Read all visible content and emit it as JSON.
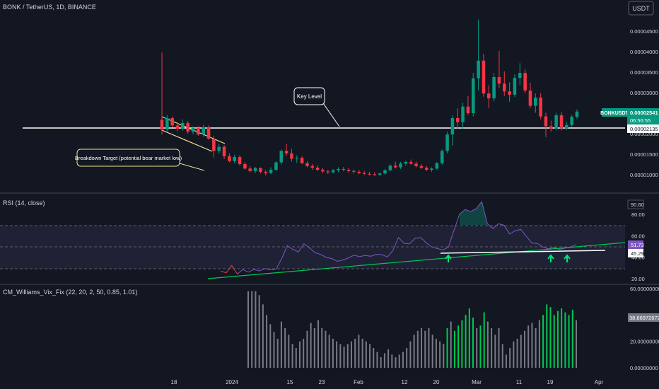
{
  "header": {
    "symbol": "BONK / TetherUS, 1D, BINANCE",
    "currency_button": "USDT"
  },
  "colors": {
    "background": "#131722",
    "up": "#089981",
    "down": "#f23645",
    "rsi_line": "#7e57c2",
    "rsi_band": "#2a2a46",
    "vix_bar": "#787b86",
    "vix_highlight": "#00c853",
    "trendline": "#00c853",
    "key_level": "#ffffff",
    "wedge": "#f0e68c",
    "arrow": "#00e676"
  },
  "annotations": {
    "key_level": "Key Level",
    "breakdown": "Breakdown Target (potential bear market low)"
  },
  "price_badges": {
    "symbol": "BONKUSDT",
    "last": "0.00002541",
    "countdown": "06:56:55",
    "level": "0.00002135"
  },
  "rsi_badges": {
    "high": "90.60",
    "value": "51.73",
    "ma": "45.29"
  },
  "vix_badge": "38.86972672",
  "chart_data": [
    {
      "type": "candlestick",
      "name": "BONKUSDT",
      "y_ticks": [
        "0.00004500",
        "0.00004000",
        "0.00003500",
        "0.00003000",
        "0.00002000",
        "0.00001500",
        "0.00001000"
      ],
      "y_tick_values": [
        4.5e-05,
        4e-05,
        3.5e-05,
        3e-05,
        2e-05,
        1.5e-05,
        1e-05
      ],
      "ylim": [
        6.5e-06,
        4.9e-05
      ],
      "key_level": 2.135e-05,
      "x_ticks": [
        "18",
        "2024",
        "15",
        "23",
        "Feb",
        "12",
        "20",
        "Mar",
        "11",
        "19",
        "Apr"
      ],
      "ohlc": [
        [
          2.34e-05,
          3.98e-05,
          1.98e-05,
          2.1e-05
        ],
        [
          2.1e-05,
          2.45e-05,
          2.05e-05,
          2.38e-05
        ],
        [
          2.38e-05,
          2.42e-05,
          2.15e-05,
          2.2e-05
        ],
        [
          2.2e-05,
          2.28e-05,
          2.05e-05,
          2.12e-05
        ],
        [
          2.12e-05,
          2.35e-05,
          2.08e-05,
          2.26e-05
        ],
        [
          2.26e-05,
          2.31e-05,
          2e-05,
          2.05e-05
        ],
        [
          2.05e-05,
          2.18e-05,
          1.98e-05,
          2.14e-05
        ],
        [
          2.14e-05,
          2.19e-05,
          1.95e-05,
          1.98e-05
        ],
        [
          1.98e-05,
          2.22e-05,
          1.92e-05,
          2.16e-05
        ],
        [
          2.16e-05,
          2.2e-05,
          1.85e-05,
          1.88e-05
        ],
        [
          1.88e-05,
          1.95e-05,
          1.42e-05,
          1.58e-05
        ],
        [
          1.58e-05,
          1.75e-05,
          1.52e-05,
          1.68e-05
        ],
        [
          1.68e-05,
          1.72e-05,
          1.38e-05,
          1.45e-05
        ],
        [
          1.45e-05,
          1.52e-05,
          1.3e-05,
          1.33e-05
        ],
        [
          1.33e-05,
          1.49e-05,
          1.28e-05,
          1.43e-05
        ],
        [
          1.43e-05,
          1.48e-05,
          1.22e-05,
          1.26e-05
        ],
        [
          1.26e-05,
          1.31e-05,
          1.12e-05,
          1.15e-05
        ],
        [
          1.15e-05,
          1.22e-05,
          1.06e-05,
          1.09e-05
        ],
        [
          1.09e-05,
          1.19e-05,
          1.04e-05,
          1.16e-05
        ],
        [
          1.16e-05,
          1.18e-05,
          1.03e-05,
          1.07e-05
        ],
        [
          1.07e-05,
          1.12e-05,
          9.8e-06,
          1.04e-05
        ],
        [
          1.04e-05,
          1.18e-05,
          1.01e-05,
          1.12e-05
        ],
        [
          1.12e-05,
          1.33e-05,
          1.09e-05,
          1.3e-05
        ],
        [
          1.3e-05,
          1.62e-05,
          1.25e-05,
          1.58e-05
        ],
        [
          1.58e-05,
          1.75e-05,
          1.46e-05,
          1.52e-05
        ],
        [
          1.52e-05,
          1.63e-05,
          1.32e-05,
          1.39e-05
        ],
        [
          1.39e-05,
          1.47e-05,
          1.29e-05,
          1.41e-05
        ],
        [
          1.41e-05,
          1.45e-05,
          1.26e-05,
          1.28e-05
        ],
        [
          1.28e-05,
          1.33e-05,
          1.18e-05,
          1.21e-05
        ],
        [
          1.21e-05,
          1.26e-05,
          1.12e-05,
          1.17e-05
        ],
        [
          1.17e-05,
          1.23e-05,
          1.09e-05,
          1.12e-05
        ],
        [
          1.12e-05,
          1.17e-05,
          1.04e-05,
          1.08e-05
        ],
        [
          1.08e-05,
          1.12e-05,
          1.02e-05,
          1.06e-05
        ],
        [
          1.06e-05,
          1.14e-05,
          1.03e-05,
          1.11e-05
        ],
        [
          1.11e-05,
          1.18e-05,
          1.06e-05,
          1.14e-05
        ],
        [
          1.14e-05,
          1.19e-05,
          1.08e-05,
          1.12e-05
        ],
        [
          1.12e-05,
          1.16e-05,
          1.05e-05,
          1.09e-05
        ],
        [
          1.09e-05,
          1.13e-05,
          1.03e-05,
          1.07e-05
        ],
        [
          1.07e-05,
          1.12e-05,
          1.01e-05,
          1.04e-05
        ],
        [
          1.04e-05,
          1.09e-05,
          9.9e-06,
          1.02e-05
        ],
        [
          1.02e-05,
          1.07e-05,
          9.8e-06,
          1.01e-05
        ],
        [
          1.01e-05,
          1.06e-05,
          9.7e-06,
          1e-05
        ],
        [
          1e-05,
          1.05e-05,
          9.7e-06,
          1.03e-05
        ],
        [
          1.03e-05,
          1.14e-05,
          1e-05,
          1.11e-05
        ],
        [
          1.11e-05,
          1.25e-05,
          1.08e-05,
          1.22e-05
        ],
        [
          1.22e-05,
          1.32e-05,
          1.15e-05,
          1.18e-05
        ],
        [
          1.18e-05,
          1.31e-05,
          1.14e-05,
          1.27e-05
        ],
        [
          1.27e-05,
          1.34e-05,
          1.22e-05,
          1.31e-05
        ],
        [
          1.31e-05,
          1.37e-05,
          1.24e-05,
          1.27e-05
        ],
        [
          1.27e-05,
          1.32e-05,
          1.18e-05,
          1.21e-05
        ],
        [
          1.21e-05,
          1.26e-05,
          1.14e-05,
          1.17e-05
        ],
        [
          1.17e-05,
          1.21e-05,
          1.09e-05,
          1.12e-05
        ],
        [
          1.12e-05,
          1.18e-05,
          1.07e-05,
          1.15e-05
        ],
        [
          1.15e-05,
          1.31e-05,
          1.11e-05,
          1.28e-05
        ],
        [
          1.28e-05,
          1.62e-05,
          1.24e-05,
          1.58e-05
        ],
        [
          1.58e-05,
          2.05e-05,
          1.52e-05,
          1.98e-05
        ],
        [
          1.98e-05,
          2.45e-05,
          1.71e-05,
          2.38e-05
        ],
        [
          2.38e-05,
          2.62e-05,
          2.11e-05,
          2.28e-05
        ],
        [
          2.28e-05,
          2.75e-05,
          2.12e-05,
          2.66e-05
        ],
        [
          2.66e-05,
          2.92e-05,
          2.45e-05,
          2.5e-05
        ],
        [
          2.5e-05,
          3.48e-05,
          2.42e-05,
          3.35e-05
        ],
        [
          3.35e-05,
          4.78e-05,
          3.05e-05,
          3.78e-05
        ],
        [
          3.78e-05,
          3.95e-05,
          2.9e-05,
          2.98e-05
        ],
        [
          2.98e-05,
          3.18e-05,
          2.62e-05,
          2.86e-05
        ],
        [
          2.86e-05,
          3.48e-05,
          2.78e-05,
          3.38e-05
        ],
        [
          3.38e-05,
          4.02e-05,
          3.12e-05,
          3.22e-05
        ],
        [
          3.22e-05,
          3.52e-05,
          2.92e-05,
          3.03e-05
        ],
        [
          3.03e-05,
          3.25e-05,
          2.78e-05,
          2.95e-05
        ],
        [
          2.95e-05,
          3.45e-05,
          2.89e-05,
          3.36e-05
        ],
        [
          3.36e-05,
          3.72e-05,
          3.18e-05,
          3.48e-05
        ],
        [
          3.48e-05,
          3.58e-05,
          2.99e-05,
          3.05e-05
        ],
        [
          3.05e-05,
          3.24e-05,
          2.62e-05,
          2.68e-05
        ],
        [
          2.68e-05,
          2.98e-05,
          2.51e-05,
          2.88e-05
        ],
        [
          2.88e-05,
          2.99e-05,
          2.35e-05,
          2.42e-05
        ],
        [
          2.42e-05,
          2.51e-05,
          1.92e-05,
          2.18e-05
        ],
        [
          2.18e-05,
          2.32e-05,
          2.05e-05,
          2.12e-05
        ],
        [
          2.12e-05,
          2.51e-05,
          2.09e-05,
          2.45e-05
        ],
        [
          2.45e-05,
          2.53e-05,
          2.08e-05,
          2.13e-05
        ],
        [
          2.13e-05,
          2.28e-05,
          2.09e-05,
          2.21e-05
        ],
        [
          2.21e-05,
          2.46e-05,
          2.16e-05,
          2.41e-05
        ],
        [
          2.41e-05,
          2.59e-05,
          2.36e-05,
          2.54e-05
        ]
      ]
    },
    {
      "type": "line",
      "name": "RSI (14, close)",
      "y_ticks": [
        "80.00",
        "60.00",
        "40.00",
        "20.00"
      ],
      "y_tick_values": [
        80,
        60,
        40,
        20
      ],
      "ylim": [
        15,
        95
      ],
      "bands": [
        30,
        50,
        70
      ],
      "values": [
        27.0,
        25.5,
        32.3,
        24.4,
        28.5,
        26.1,
        28.6,
        27.2,
        29.4,
        28.2,
        29.0,
        38.8,
        50.7,
        47.2,
        44.9,
        52.6,
        48.7,
        44.2,
        42.6,
        39.8,
        38.7,
        36.2,
        37.4,
        39.3,
        41.9,
        40.5,
        41.7,
        40.9,
        42.6,
        42.4,
        40.3,
        46.2,
        58.5,
        52.9,
        52.5,
        57.6,
        58.4,
        53.4,
        49.6,
        48.0,
        46.7,
        49.4,
        65.2,
        80.1,
        84.5,
        82.6,
        85.3,
        91.8,
        71.1,
        66.7,
        71.2,
        69.8,
        61.7,
        64.6,
        66.0,
        59.4,
        53.2,
        52.8,
        49.5,
        47.8,
        49.3,
        47.3,
        48.5,
        49.6,
        51.7
      ]
    },
    {
      "type": "bar",
      "name": "CM_Williams_Vix_Fix (22, 20, 2, 50, 0.85, 1.01)",
      "y_ticks": [
        "60.00000000",
        "20.00000000",
        "0.00000000"
      ],
      "y_tick_values": [
        60,
        20,
        0
      ],
      "ylim": [
        0,
        60
      ],
      "values": [
        58,
        58,
        58,
        55,
        48,
        40,
        33,
        27,
        22,
        35,
        30,
        25,
        18,
        15,
        20,
        22,
        28,
        34,
        30,
        36,
        30,
        28,
        25,
        22,
        20,
        18,
        16,
        18,
        20,
        22,
        25,
        22,
        20,
        18,
        15,
        12,
        8,
        11,
        14,
        10,
        8,
        10,
        12,
        15,
        20,
        25,
        28,
        30,
        28,
        30,
        25,
        22,
        20,
        18,
        30,
        35,
        28,
        32,
        36,
        40,
        45,
        38,
        30,
        32,
        42,
        35,
        30,
        25,
        30,
        18,
        10,
        15,
        20,
        22,
        25,
        28,
        32,
        34,
        30,
        36,
        40,
        48,
        46,
        40,
        43,
        45,
        42,
        40,
        44,
        36
      ],
      "highlighted": [
        54,
        56,
        57,
        58,
        59,
        60,
        61,
        63,
        64,
        80,
        81,
        82,
        83,
        84,
        85,
        86,
        87,
        88
      ]
    }
  ]
}
